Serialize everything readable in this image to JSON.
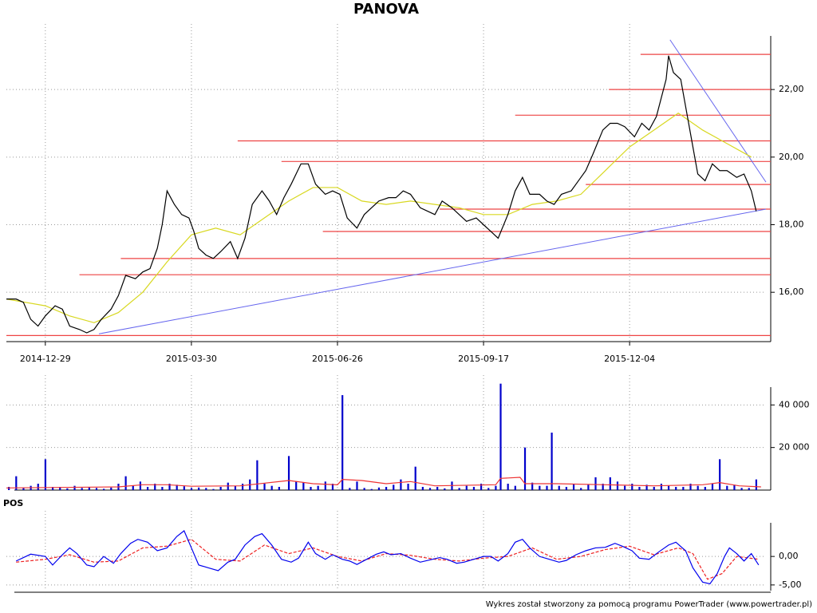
{
  "chart_data": [
    {
      "type": "line",
      "title": "PANOVA",
      "x": [
        -16,
        -12,
        -9,
        -6,
        -3,
        0,
        4,
        7,
        10,
        14,
        17,
        20,
        23,
        27,
        30,
        33,
        37,
        40,
        43,
        46,
        48,
        50,
        53,
        56,
        59,
        61,
        63,
        66,
        69,
        72,
        76,
        79,
        82,
        85,
        89,
        92,
        95,
        98,
        101,
        105,
        108,
        111,
        115,
        118,
        121,
        124,
        128,
        131,
        134,
        137,
        141,
        144,
        147,
        150,
        154,
        157,
        160,
        163,
        167,
        170,
        173,
        177,
        180,
        183,
        186,
        190,
        193,
        196,
        199,
        203,
        206,
        209,
        212,
        216,
        219,
        222,
        225,
        229,
        232,
        235,
        238,
        242,
        245,
        248,
        251,
        255,
        256,
        258,
        261,
        264,
        268,
        271,
        274,
        277,
        280,
        284,
        287,
        290,
        292
      ],
      "xlim": [
        -16,
        296
      ],
      "xticks": [
        {
          "value": 0,
          "label": "2014-12-29"
        },
        {
          "value": 60,
          "label": "2015-03-30"
        },
        {
          "value": 120,
          "label": "2015-06-26"
        },
        {
          "value": 180,
          "label": "2015-09-17"
        },
        {
          "value": 240,
          "label": "2015-12-04"
        }
      ],
      "ylim": [
        14.54,
        23.94
      ],
      "yticks": [
        {
          "value": 16,
          "label": "16,00"
        },
        {
          "value": 18,
          "label": "18,00"
        },
        {
          "value": 20,
          "label": "20,00"
        },
        {
          "value": 22,
          "label": "22,00"
        }
      ],
      "grid": true,
      "series": [
        {
          "color": "#000000",
          "values": [
            15.8,
            15.8,
            15.7,
            15.2,
            15.0,
            15.3,
            15.6,
            15.5,
            15.0,
            14.9,
            14.8,
            14.9,
            15.2,
            15.5,
            15.9,
            16.5,
            16.4,
            16.6,
            16.7,
            17.3,
            18.0,
            19.0,
            18.6,
            18.3,
            18.2,
            17.8,
            17.3,
            17.1,
            17.0,
            17.2,
            17.5,
            17.0,
            17.6,
            18.6,
            19.0,
            18.7,
            18.3,
            18.8,
            19.2,
            19.8,
            19.8,
            19.2,
            18.9,
            19.0,
            18.9,
            18.2,
            17.9,
            18.3,
            18.5,
            18.7,
            18.8,
            18.8,
            19.0,
            18.9,
            18.5,
            18.4,
            18.3,
            18.7,
            18.5,
            18.3,
            18.1,
            18.2,
            18.0,
            17.8,
            17.6,
            18.3,
            19.0,
            19.4,
            18.9,
            18.9,
            18.7,
            18.6,
            18.9,
            19.0,
            19.3,
            19.6,
            20.1,
            20.8,
            21.0,
            21.0,
            20.9,
            20.6,
            21.0,
            20.8,
            21.2,
            22.3,
            23.0,
            22.5,
            22.3,
            21.1,
            19.5,
            19.3,
            19.8,
            19.6,
            19.6,
            19.4,
            19.5,
            19.0,
            18.4
          ]
        },
        {
          "color": "#d8d820",
          "x": [
            -16,
            0,
            10,
            20,
            30,
            40,
            50,
            60,
            70,
            80,
            90,
            100,
            110,
            120,
            130,
            140,
            150,
            160,
            170,
            180,
            190,
            200,
            210,
            220,
            230,
            240,
            250,
            260,
            270,
            280,
            290
          ],
          "values": [
            15.8,
            15.6,
            15.3,
            15.1,
            15.4,
            16.0,
            16.9,
            17.7,
            17.9,
            17.7,
            18.2,
            18.7,
            19.1,
            19.1,
            18.7,
            18.6,
            18.7,
            18.6,
            18.5,
            18.3,
            18.3,
            18.6,
            18.7,
            18.9,
            19.6,
            20.3,
            20.8,
            21.3,
            20.8,
            20.4,
            20.0
          ]
        }
      ],
      "levels": {
        "color": "#ee4444",
        "values": [
          23.04,
          22.0,
          21.24,
          20.48,
          19.87,
          19.19,
          18.46,
          17.8,
          17.0,
          16.52,
          14.72
        ],
        "start_x": [
          244.5,
          231.5,
          193,
          79,
          97,
          222,
          162,
          114,
          31,
          14,
          -16
        ]
      },
      "trend_lines": {
        "color": "#6666ee",
        "lines": [
          {
            "x": [
              22,
              296
            ],
            "values": [
              14.77,
              18.46
            ]
          },
          {
            "x": [
              256.6,
              296
            ],
            "values": [
              23.47,
              19.26
            ]
          }
        ]
      }
    },
    {
      "type": "bar",
      "x": [
        -15,
        -12,
        -9,
        -6,
        -3,
        0,
        3,
        6,
        9,
        12,
        15,
        18,
        21,
        24,
        27,
        30,
        33,
        36,
        39,
        42,
        45,
        48,
        51,
        54,
        57,
        60,
        63,
        66,
        69,
        72,
        75,
        78,
        81,
        84,
        87,
        90,
        93,
        96,
        100,
        103,
        106,
        109,
        112,
        115,
        118,
        122,
        125,
        128,
        131,
        134,
        137,
        140,
        143,
        146,
        149,
        152,
        155,
        158,
        161,
        164,
        167,
        170,
        173,
        176,
        179,
        182,
        185,
        187,
        190,
        193,
        197,
        200,
        203,
        206,
        208,
        211,
        214,
        217,
        220,
        223,
        226,
        229,
        232,
        235,
        238,
        241,
        244,
        247,
        250,
        253,
        256,
        259,
        262,
        265,
        268,
        271,
        274,
        277,
        280,
        283,
        286,
        289,
        292
      ],
      "values": [
        1500,
        6500,
        1000,
        2000,
        3000,
        14500,
        1500,
        1500,
        800,
        2000,
        1000,
        1500,
        1000,
        600,
        1200,
        3000,
        6500,
        2000,
        4000,
        1500,
        3000,
        1500,
        3000,
        2500,
        1800,
        1000,
        1200,
        1000,
        500,
        1500,
        3500,
        2000,
        3000,
        5000,
        14000,
        3000,
        2000,
        1500,
        16000,
        4000,
        3500,
        1500,
        2000,
        4000,
        3000,
        44600,
        1000,
        4000,
        1000,
        500,
        1200,
        1500,
        2500,
        5000,
        3000,
        11000,
        1500,
        1000,
        1500,
        800,
        4000,
        1000,
        2000,
        1500,
        3000,
        1000,
        2000,
        50000,
        3000,
        2000,
        20000,
        3500,
        2000,
        2000,
        27000,
        2000,
        1500,
        3000,
        1000,
        2500,
        6000,
        3000,
        6000,
        4000,
        2000,
        3000,
        1500,
        2500,
        1500,
        3000,
        2000,
        1500,
        1500,
        3000,
        2000,
        1500,
        3000,
        14500,
        2000,
        2500,
        1000,
        1000,
        5000
      ],
      "color": "#0000cc",
      "ylim": [
        0,
        54000
      ],
      "yticks": [
        {
          "value": 20000,
          "label": "20 000"
        },
        {
          "value": 40000,
          "label": "40 000"
        }
      ],
      "series": [
        {
          "color": "#ee3333",
          "x": [
            -16,
            30,
            40,
            50,
            60,
            80,
            100,
            110,
            120,
            122,
            130,
            140,
            150,
            160,
            185,
            187,
            195,
            197,
            210,
            230,
            250,
            270,
            277,
            285,
            294
          ],
          "values": [
            1000,
            1500,
            2500,
            2500,
            1800,
            2000,
            4500,
            3000,
            2500,
            5000,
            4500,
            3000,
            4000,
            2000,
            2500,
            5500,
            6000,
            3000,
            3000,
            2500,
            2000,
            2500,
            3500,
            2000,
            1500
          ]
        }
      ]
    },
    {
      "type": "line",
      "title": "POS",
      "ylim": [
        -6,
        8
      ],
      "yticks": [
        {
          "value": -5,
          "label": "-5,00"
        },
        {
          "value": 0,
          "label": "0,00"
        }
      ],
      "series": [
        {
          "color": "#0000ee",
          "x": [
            -12,
            -6,
            0,
            3,
            7,
            10,
            13,
            17,
            20,
            24,
            28,
            31,
            35,
            38,
            42,
            46,
            50,
            54,
            57,
            60,
            63,
            67,
            71,
            75,
            78,
            82,
            86,
            89,
            93,
            97,
            101,
            104,
            108,
            111,
            115,
            118,
            122,
            125,
            128,
            132,
            136,
            139,
            142,
            146,
            150,
            154,
            158,
            162,
            165,
            169,
            172,
            176,
            180,
            183,
            186,
            190,
            193,
            196,
            199,
            203,
            207,
            211,
            214,
            218,
            222,
            226,
            230,
            234,
            237,
            241,
            244,
            248,
            252,
            256,
            259,
            263,
            266,
            270,
            273,
            276,
            279,
            281,
            284,
            287,
            290,
            293
          ],
          "values": [
            -0.8,
            0.4,
            0,
            -1.5,
            0.3,
            1.5,
            0.5,
            -1.5,
            -1.8,
            0,
            -1.2,
            0.5,
            2.3,
            3.0,
            2.5,
            1,
            1.5,
            3.5,
            4.5,
            1.5,
            -1.5,
            -2,
            -2.5,
            -1,
            -0.5,
            2,
            3.5,
            4,
            2,
            -0.5,
            -1,
            -0.3,
            2.5,
            0.5,
            -0.5,
            0.3,
            -0.5,
            -0.8,
            -1.4,
            -0.5,
            0.4,
            0.8,
            0.3,
            0.5,
            -0.3,
            -1.0,
            -0.6,
            -0.2,
            -0.5,
            -1.2,
            -1.0,
            -0.5,
            0,
            0,
            -0.8,
            0.5,
            2.5,
            3,
            1.5,
            0,
            -0.5,
            -1.0,
            -0.7,
            0.3,
            1.0,
            1.5,
            1.6,
            2.3,
            1.8,
            1.0,
            -0.3,
            -0.5,
            0.8,
            2.0,
            2.5,
            1.0,
            -2,
            -4.5,
            -4.8,
            -3.0,
            0,
            1.5,
            0.5,
            -0.8,
            0.5,
            -1.5
          ]
        },
        {
          "color": "#ee2222",
          "dashed": true,
          "x": [
            -12,
            0,
            10,
            20,
            30,
            40,
            50,
            60,
            70,
            80,
            90,
            100,
            110,
            120,
            130,
            140,
            150,
            160,
            170,
            180,
            190,
            200,
            210,
            220,
            230,
            240,
            250,
            260,
            266,
            272,
            278,
            284,
            293
          ],
          "values": [
            -1,
            -0.5,
            0.3,
            -1,
            -0.8,
            1.5,
            1.8,
            3,
            -0.5,
            -0.8,
            2,
            0.5,
            1.5,
            0,
            -0.8,
            0.5,
            0.2,
            -0.5,
            -0.8,
            -0.3,
            0,
            1.5,
            -0.5,
            0,
            1.2,
            1.8,
            0.3,
            1.5,
            0.5,
            -4,
            -3,
            0,
            -0.5
          ]
        }
      ]
    }
  ],
  "footer": "Wykres został stworzony za pomocą programu PowerTrader (www.powertrader.pl)"
}
